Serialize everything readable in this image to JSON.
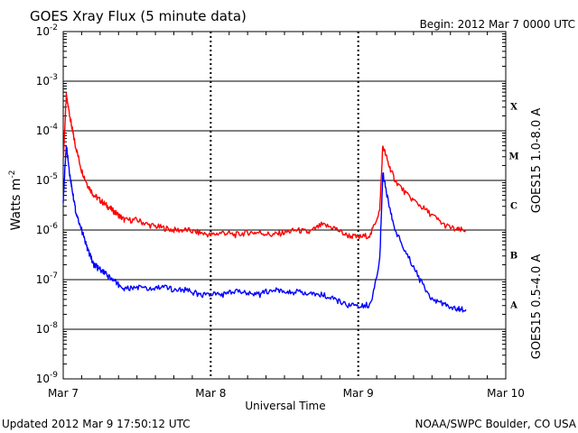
{
  "header": {
    "title": "GOES Xray Flux (5 minute data)",
    "begin": "Begin:  2012 Mar 7 0000 UTC"
  },
  "footer": {
    "updated": "Updated 2012 Mar  9 17:50:12 UTC",
    "source": "NOAA/SWPC Boulder, CO USA"
  },
  "chart_data": {
    "type": "line",
    "title": "GOES Xray Flux (5 minute data)",
    "xlabel": "Universal Time",
    "ylabel": "Watts m",
    "ylabel_sup": "-2",
    "yscale": "log",
    "ylim": [
      "1e-9",
      "1e-2"
    ],
    "yticks": [
      {
        "base": "10",
        "exp": "-9",
        "v": -9
      },
      {
        "base": "10",
        "exp": "-8",
        "v": -8
      },
      {
        "base": "10",
        "exp": "-7",
        "v": -7
      },
      {
        "base": "10",
        "exp": "-6",
        "v": -6
      },
      {
        "base": "10",
        "exp": "-5",
        "v": -5
      },
      {
        "base": "10",
        "exp": "-4",
        "v": -4
      },
      {
        "base": "10",
        "exp": "-3",
        "v": -3
      },
      {
        "base": "10",
        "exp": "-2",
        "v": -2
      }
    ],
    "xlim": [
      "2012-03-07T00:00Z",
      "2012-03-10T00:00Z"
    ],
    "xticks": [
      {
        "label": "Mar 7",
        "date": "2012-03-07"
      },
      {
        "label": "Mar 8",
        "date": "2012-03-08"
      },
      {
        "label": "Mar 9",
        "date": "2012-03-09"
      },
      {
        "label": "Mar 10",
        "date": "2012-03-10"
      }
    ],
    "flare_classes": [
      {
        "label": "X",
        "v": -3.5
      },
      {
        "label": "M",
        "v": -4.5
      },
      {
        "label": "C",
        "v": -5.5
      },
      {
        "label": "B",
        "v": -6.5
      },
      {
        "label": "A",
        "v": -7.5
      }
    ],
    "grid": "horizontal lines at each decade; dotted vertical lines at day boundaries",
    "series": [
      {
        "name": "GOES15 1.0-8.0 A",
        "color": "#ff0000",
        "x": [
          "2012-03-07T00:00Z",
          "2012-03-07T00:30Z",
          "2012-03-07T01:05Z",
          "2012-03-07T01:30Z",
          "2012-03-07T02:00Z",
          "2012-03-07T03:00Z",
          "2012-03-07T04:00Z",
          "2012-03-07T05:00Z",
          "2012-03-07T06:00Z",
          "2012-03-07T07:00Z",
          "2012-03-07T08:00Z",
          "2012-03-07T09:00Z",
          "2012-03-07T10:00Z",
          "2012-03-07T12:00Z",
          "2012-03-07T14:00Z",
          "2012-03-07T16:00Z",
          "2012-03-07T18:00Z",
          "2012-03-07T20:00Z",
          "2012-03-07T22:00Z",
          "2012-03-08T00:00Z",
          "2012-03-08T02:00Z",
          "2012-03-08T04:00Z",
          "2012-03-08T06:00Z",
          "2012-03-08T08:00Z",
          "2012-03-08T10:00Z",
          "2012-03-08T12:00Z",
          "2012-03-08T14:00Z",
          "2012-03-08T16:00Z",
          "2012-03-08T18:00Z",
          "2012-03-08T20:00Z",
          "2012-03-08T22:00Z",
          "2012-03-09T00:00Z",
          "2012-03-09T02:00Z",
          "2012-03-09T03:30Z",
          "2012-03-09T04:00Z",
          "2012-03-09T05:00Z",
          "2012-03-09T06:00Z",
          "2012-03-09T08:00Z",
          "2012-03-09T10:00Z",
          "2012-03-09T12:00Z",
          "2012-03-09T14:00Z",
          "2012-03-09T16:00Z",
          "2012-03-09T17:30Z"
        ],
        "y": [
          -4.6,
          -3.3,
          -3.7,
          -4.0,
          -4.3,
          -4.8,
          -5.1,
          -5.3,
          -5.4,
          -5.5,
          -5.6,
          -5.7,
          -5.8,
          -5.8,
          -5.9,
          -5.95,
          -6.0,
          -6.0,
          -6.05,
          -6.1,
          -6.05,
          -6.1,
          -6.05,
          -6.05,
          -6.1,
          -6.05,
          -6.0,
          -6.05,
          -5.9,
          -5.95,
          -6.1,
          -6.15,
          -6.1,
          -5.6,
          -4.3,
          -4.7,
          -5.0,
          -5.3,
          -5.5,
          -5.7,
          -5.9,
          -6.0,
          -6.0
        ]
      },
      {
        "name": "GOES15 0.5-4.0 A",
        "color": "#0000ff",
        "x": [
          "2012-03-07T00:00Z",
          "2012-03-07T00:30Z",
          "2012-03-07T01:05Z",
          "2012-03-07T01:30Z",
          "2012-03-07T02:00Z",
          "2012-03-07T03:00Z",
          "2012-03-07T04:00Z",
          "2012-03-07T05:00Z",
          "2012-03-07T06:00Z",
          "2012-03-07T07:00Z",
          "2012-03-07T08:00Z",
          "2012-03-07T09:00Z",
          "2012-03-07T10:00Z",
          "2012-03-07T12:00Z",
          "2012-03-07T14:00Z",
          "2012-03-07T16:00Z",
          "2012-03-07T18:00Z",
          "2012-03-07T20:00Z",
          "2012-03-07T22:00Z",
          "2012-03-08T00:00Z",
          "2012-03-08T02:00Z",
          "2012-03-08T04:00Z",
          "2012-03-08T06:00Z",
          "2012-03-08T08:00Z",
          "2012-03-08T10:00Z",
          "2012-03-08T12:00Z",
          "2012-03-08T14:00Z",
          "2012-03-08T16:00Z",
          "2012-03-08T18:00Z",
          "2012-03-08T20:00Z",
          "2012-03-08T22:00Z",
          "2012-03-09T00:00Z",
          "2012-03-09T02:00Z",
          "2012-03-09T03:30Z",
          "2012-03-09T04:00Z",
          "2012-03-09T05:00Z",
          "2012-03-09T06:00Z",
          "2012-03-09T08:00Z",
          "2012-03-09T10:00Z",
          "2012-03-09T12:00Z",
          "2012-03-09T14:00Z",
          "2012-03-09T16:00Z",
          "2012-03-09T17:30Z"
        ],
        "y": [
          -5.4,
          -4.3,
          -4.9,
          -5.2,
          -5.6,
          -6.0,
          -6.4,
          -6.7,
          -6.8,
          -6.9,
          -7.0,
          -7.1,
          -7.2,
          -7.15,
          -7.2,
          -7.15,
          -7.2,
          -7.2,
          -7.3,
          -7.3,
          -7.3,
          -7.25,
          -7.25,
          -7.3,
          -7.2,
          -7.25,
          -7.25,
          -7.3,
          -7.3,
          -7.4,
          -7.5,
          -7.55,
          -7.5,
          -6.6,
          -4.85,
          -5.5,
          -6.0,
          -6.5,
          -7.0,
          -7.4,
          -7.5,
          -7.6,
          -7.6
        ]
      }
    ],
    "colors": {
      "long": "#ff0000",
      "short": "#0000ff",
      "axis": "#000000"
    }
  }
}
